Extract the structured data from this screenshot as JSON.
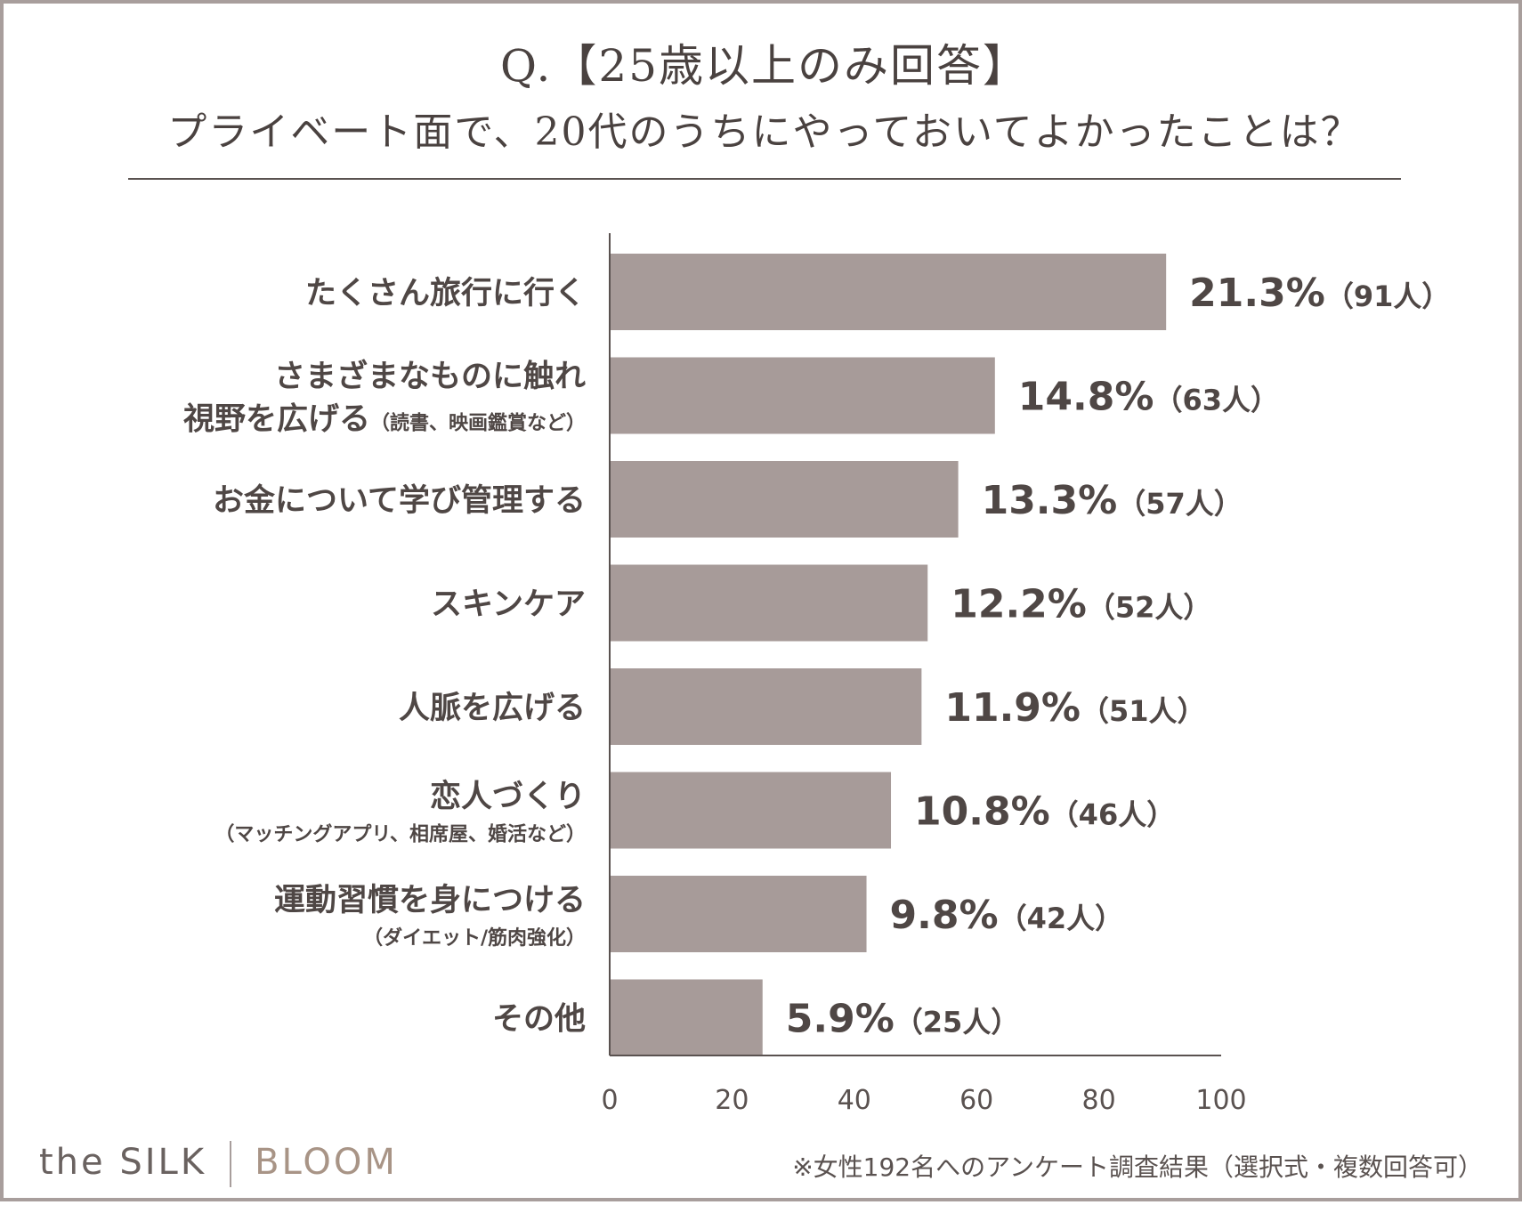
{
  "title_line1": "Q.【25歳以上のみ回答】",
  "title_line2": "プライベート面で、20代のうちにやっておいてよかったことは？",
  "chart_data": {
    "type": "bar",
    "orientation": "horizontal",
    "categories": [
      {
        "main": "たくさん旅行に行く",
        "line2": "",
        "line2_note": "",
        "note": ""
      },
      {
        "main": "さまざまなものに触れ",
        "line2": "視野を広げる",
        "line2_note": "（読書、映画鑑賞など）",
        "note": ""
      },
      {
        "main": "お金について学び管理する",
        "line2": "",
        "line2_note": "",
        "note": ""
      },
      {
        "main": "スキンケア",
        "line2": "",
        "line2_note": "",
        "note": ""
      },
      {
        "main": "人脈を広げる",
        "line2": "",
        "line2_note": "",
        "note": ""
      },
      {
        "main": "恋人づくり",
        "line2": "",
        "line2_note": "",
        "note": "（マッチングアプリ、相席屋、婚活など）"
      },
      {
        "main": "運動習慣を身につける",
        "line2": "",
        "line2_note": "",
        "note": "（ダイエット/筋肉強化）"
      },
      {
        "main": "その他",
        "line2": "",
        "line2_note": "",
        "note": ""
      }
    ],
    "values": [
      91,
      63,
      57,
      52,
      51,
      46,
      42,
      25
    ],
    "percent_labels": [
      "21.3%",
      "14.8%",
      "13.3%",
      "12.2%",
      "11.9%",
      "10.8%",
      "9.8%",
      "5.9%"
    ],
    "count_labels": [
      "（91人）",
      "（63人）",
      "（57人）",
      "（52人）",
      "（51人）",
      "（46人）",
      "（42人）",
      "（25人）"
    ],
    "xlim": [
      0,
      100
    ],
    "xticks": [
      "0",
      "20",
      "40",
      "60",
      "80",
      "100"
    ],
    "bar_color": "#a79b99",
    "grid": false
  },
  "footer": {
    "logo_part1": "the SILK",
    "logo_part2": "BLOOM",
    "note": "※女性192名へのアンケート調査結果（選択式・複数回答可）"
  }
}
